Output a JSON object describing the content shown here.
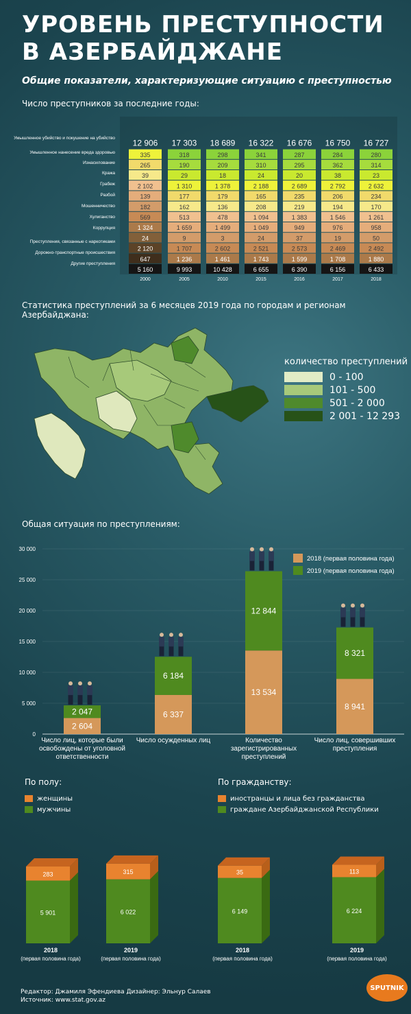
{
  "title": "УРОВЕНЬ ПРЕСТУПНОСТИ В АЗЕРБАЙДЖАНЕ",
  "subtitle": "Общие показатели, характеризующие ситуацию с преступностью",
  "section1_title": "Число преступников за последние годы:",
  "section2_title": "Статистика преступлений за 6 месяцев 2019 года по городам и регионам Азербайджана:",
  "section3_title": "Общая ситуация по преступлениям:",
  "map_legend": {
    "title": "количество преступлений",
    "items": [
      {
        "label": "0 - 100",
        "color": "#e2ecc6"
      },
      {
        "label": "101 - 500",
        "color": "#a7c97a"
      },
      {
        "label": "501 - 2 000",
        "color": "#4f8a2c"
      },
      {
        "label": "2 001 - 12 293",
        "color": "#275218"
      }
    ]
  },
  "gender_section": {
    "title": "По полу:",
    "legend": [
      "женщины",
      "мужчины"
    ]
  },
  "citizenship_section": {
    "title": "По гражданству:",
    "legend": [
      "иностранцы и лица без гражданства",
      "граждане Азербайджанской Республики"
    ]
  },
  "footer": {
    "editor": "Редактор: Джамиля Эфендиева  Дизайнер: Эльнур Салаев",
    "source": "Источник: www.stat.gov.az"
  },
  "logo": "SPUTNIK",
  "colors": {
    "orange": "#e8832f",
    "green": "#4f8a1f",
    "tan": "#d5985a",
    "background": "#1f4a55"
  },
  "chart_data": [
    {
      "type": "bar",
      "stacked": true,
      "categories": [
        "2000",
        "2005",
        "2010",
        "2015",
        "2016",
        "2017",
        "2018"
      ],
      "totals": [
        "12 906",
        "17 303",
        "18 689",
        "16 322",
        "16 676",
        "16 750",
        "16 727"
      ],
      "series": [
        {
          "name": "Умышленное убийство и покушение на убийство",
          "color": "#8bd33a",
          "values": [
            "",
            "318",
            "298",
            "341",
            "287",
            "284",
            "280"
          ]
        },
        {
          "name": "Умышленное нанесение вреда здоровью",
          "color": "#a6dc3d",
          "values": [
            "",
            "190",
            "209",
            "310",
            "295",
            "362",
            "314"
          ]
        },
        {
          "name": "Изнасилование",
          "color": "#c9e92f",
          "values": [
            "",
            "29",
            "18",
            "24",
            "20",
            "38",
            "23"
          ]
        },
        {
          "name": "Кража",
          "color": "#eef23a",
          "values": [
            "335",
            "1 310",
            "1 378",
            "2 188",
            "2 689",
            "2 792",
            "2 632"
          ]
        },
        {
          "name": "Грабеж",
          "color": "#f1da6b",
          "values": [
            "265",
            "177",
            "179",
            "165",
            "235",
            "206",
            "234"
          ]
        },
        {
          "name": "Разбой",
          "color": "#f6e98a",
          "values": [
            "39",
            "162",
            "136",
            "208",
            "219",
            "194",
            "170"
          ]
        },
        {
          "name": "",
          "color": "#f0c08f",
          "values": [
            "2 102",
            "513",
            "478",
            "1 094",
            "1 383",
            "1 546",
            "1 261"
          ]
        },
        {
          "name": "Мошенничество",
          "color": "#e5ad7b",
          "values": [
            "139",
            "1 659",
            "1 499",
            "1 049",
            "949",
            "976",
            "958"
          ]
        },
        {
          "name": "Хулиганство",
          "color": "#d39c6a",
          "values": [
            "182",
            "9",
            "3",
            "24",
            "37",
            "19",
            "50"
          ]
        },
        {
          "name": "",
          "color": "#c78a55",
          "values": [
            "569",
            "1 707",
            "2 602",
            "2 521",
            "2 573",
            "2 469",
            "2 492"
          ]
        },
        {
          "name": "Коррупция",
          "color": "#ab7a4a",
          "values": [
            "1 324",
            "1 236",
            "1 461",
            "1 743",
            "1 599",
            "1 708",
            "1 880"
          ]
        },
        {
          "name": "Преступления, связанные с наркотиками",
          "color": "#82603a",
          "values": [
            "24",
            "",
            "",
            "",
            "",
            "",
            ""
          ]
        },
        {
          "name": "Дорожно-транспортные происшествия",
          "color": "#5c4327",
          "values": [
            "2 120",
            "",
            "",
            "",
            "",
            "",
            ""
          ]
        },
        {
          "name": "",
          "color": "#3f2e1c",
          "values": [
            "647",
            "",
            "",
            "",
            "",
            "",
            ""
          ]
        },
        {
          "name": "Другие преступления",
          "color": "#151515",
          "values": [
            "5 160",
            "9 993",
            "10 428",
            "6 655",
            "6 390",
            "6 156",
            "6 433"
          ]
        }
      ],
      "labels_left": [
        "Умышленное убийство и покушение на убийство",
        "Умышленное нанесение вреда здоровью",
        "Изнасилование",
        "Кража",
        "Грабеж",
        "Разбой",
        "Мошенничество",
        "Хулиганство",
        "Коррупция",
        "Преступления, связанные с наркотиками",
        "Дорожно-транспортные происшествия",
        "Другие преступления"
      ]
    },
    {
      "type": "bar",
      "stacked": true,
      "categories": [
        "Число лиц, которые были освобождены от уголовной ответственности",
        "Число осужденных лиц",
        "Количество зарегистрированных преступлений",
        "Число лиц, совершивших преступления"
      ],
      "series": [
        {
          "name": "2018 (первая половина года)",
          "color": "#d5985a",
          "values": [
            2604,
            6337,
            13534,
            8941
          ]
        },
        {
          "name": "2019 (первая половина года)",
          "color": "#4f8a1f",
          "values": [
            2047,
            6184,
            12844,
            8321
          ]
        }
      ],
      "ylim": [
        0,
        30000
      ],
      "yticks": [
        "0",
        "5 000",
        "10 000",
        "15 000",
        "20 000",
        "25 000",
        "30 000"
      ],
      "value_labels": {
        "2018": [
          "2 604",
          "6 337",
          "13 534",
          "8 941"
        ],
        "2019": [
          "2 047",
          "6 184",
          "12 844",
          "8 321"
        ]
      }
    },
    {
      "type": "bar",
      "stacked": true,
      "title": "По полу:",
      "categories": [
        "2018",
        "2019"
      ],
      "sublabels": [
        "(первая половина года)",
        "(первая половина года)"
      ],
      "series": [
        {
          "name": "мужчины",
          "color": "#4f8a1f",
          "values": [
            5901,
            6022
          ],
          "labels": [
            "5 901",
            "6 022"
          ]
        },
        {
          "name": "женщины",
          "color": "#e8832f",
          "values": [
            283,
            315
          ],
          "labels": [
            "283",
            "315"
          ]
        }
      ]
    },
    {
      "type": "bar",
      "stacked": true,
      "title": "По гражданству:",
      "categories": [
        "2018",
        "2019"
      ],
      "sublabels": [
        "(первая половина года)",
        "(первая половина года)"
      ],
      "series": [
        {
          "name": "граждане Азербайджанской Республики",
          "color": "#4f8a1f",
          "values": [
            6149,
            6224
          ],
          "labels": [
            "6 149",
            "6 224"
          ]
        },
        {
          "name": "иностранцы и лица без гражданства",
          "color": "#e8832f",
          "values": [
            35,
            113
          ],
          "labels": [
            "35",
            "113"
          ]
        }
      ]
    }
  ]
}
